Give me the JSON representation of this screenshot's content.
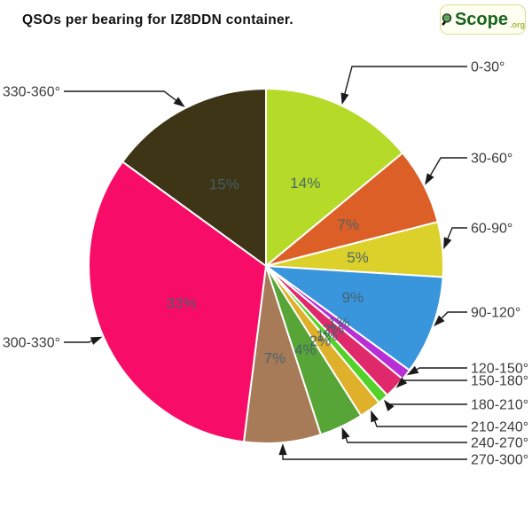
{
  "title": "QSOs per bearing for IZ8DDN container.",
  "logo": {
    "name": "Scope",
    "suffix": ".org"
  },
  "chart_data": {
    "type": "pie",
    "title": "QSOs per bearing for IZ8DDN container.",
    "unit": "percent of QSOs",
    "start_angle": "12 o'clock, clockwise",
    "categories": [
      "0-30°",
      "30-60°",
      "60-90°",
      "90-120°",
      "120-150°",
      "150-180°",
      "180-210°",
      "210-240°",
      "240-270°",
      "270-300°",
      "300-330°",
      "330-360°"
    ],
    "values": [
      14,
      7,
      5,
      9,
      1,
      2,
      1,
      2,
      4,
      7,
      33,
      15
    ],
    "percent_labels": [
      "14%",
      "7%",
      "5%",
      "9%",
      "1%",
      "2%",
      "1%",
      "2%",
      "4%",
      "7%",
      "33%",
      "15%"
    ],
    "colors": [
      "#b5da28",
      "#dc5f28",
      "#dcd02a",
      "#3996dc",
      "#b92fd6",
      "#e0296a",
      "#55d22a",
      "#dfb02a",
      "#57a437",
      "#a87b58",
      "#f70d68",
      "#3e3517"
    ],
    "percent_label_color": "#44606a",
    "legend_position": "callouts-around-pie",
    "grid": false
  }
}
